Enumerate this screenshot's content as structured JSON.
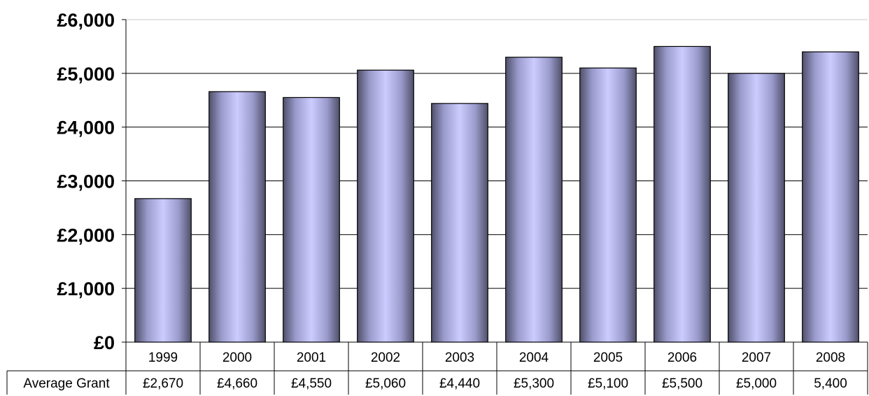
{
  "chart_data": {
    "type": "bar",
    "title": "",
    "xlabel": "",
    "ylabel": "",
    "categories": [
      "1999",
      "2000",
      "2001",
      "2002",
      "2003",
      "2004",
      "2005",
      "2006",
      "2007",
      "2008"
    ],
    "series": [
      {
        "name": "Average Grant",
        "values": [
          2670,
          4660,
          4550,
          5060,
          4440,
          5300,
          5100,
          5500,
          5000,
          5400
        ]
      }
    ],
    "ylim": [
      0,
      6000
    ],
    "yticks": [
      0,
      1000,
      2000,
      3000,
      4000,
      5000,
      6000
    ],
    "ytick_labels": [
      "£0",
      "£1,000",
      "£2,000",
      "£3,000",
      "£4,000",
      "£5,000",
      "£6,000"
    ],
    "grid": true,
    "legend": "none",
    "data_table": {
      "row_label": "Average Grant",
      "cells": [
        "£2,670",
        "£4,660",
        "£4,550",
        "£5,060",
        "£4,440",
        "£5,300",
        "£5,100",
        "£5,500",
        "£5,000",
        "5,400"
      ]
    },
    "colors": {
      "bar_light": "#ccccff",
      "bar_dark": "#5c5c7a",
      "bar_outline": "#000000",
      "gridline": "#000000"
    }
  }
}
